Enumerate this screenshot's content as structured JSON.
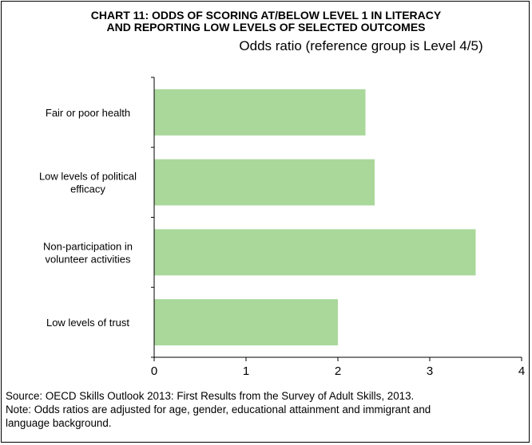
{
  "chart_data": {
    "type": "bar",
    "orientation": "horizontal",
    "title_lines": [
      "CHART 11: ODDS OF SCORING AT/BELOW LEVEL 1 IN LITERACY",
      "AND REPORTING LOW LEVELS OF SELECTED OUTCOMES"
    ],
    "subtitle": "Odds ratio (reference group is Level 4/5)",
    "categories": [
      [
        "Fair or poor health"
      ],
      [
        "Low levels of political",
        "efficacy"
      ],
      [
        "Non-participation in",
        "volunteer activities"
      ],
      [
        "Low levels of trust"
      ]
    ],
    "values": [
      2.3,
      2.4,
      3.5,
      2.0
    ],
    "xlim": [
      0,
      4
    ],
    "xticks": [
      "0",
      "1",
      "2",
      "3",
      "4"
    ],
    "bar_color": "#a9d89a",
    "grid": false,
    "legend": "none"
  },
  "footer": {
    "source": "Source: OECD Skills Outlook 2013: First Results from the Survey of Adult Skills, 2013.",
    "note_lines": [
      "Note: Odds ratios are adjusted for age, gender, educational attainment and immigrant and",
      "language background."
    ]
  }
}
